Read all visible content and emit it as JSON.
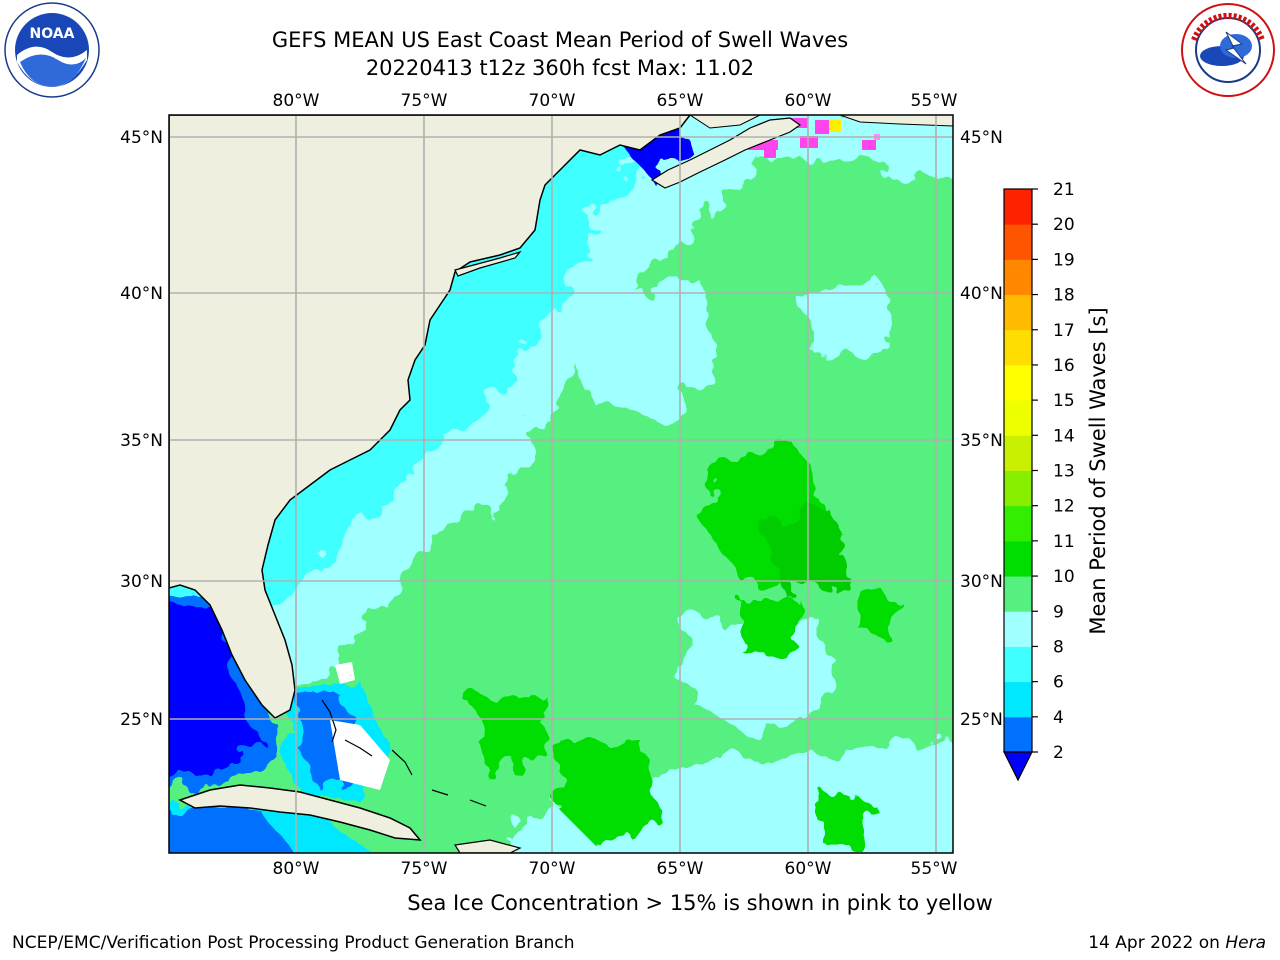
{
  "header": {
    "title": "GEFS MEAN US East Coast Mean Period of Swell Waves",
    "subtitle": "20220413 t12z 360h fcst   Max: 11.02"
  },
  "logos": {
    "left": {
      "name": "NOAA",
      "text": "NOAA"
    },
    "right": {
      "name": "National Weather Service"
    }
  },
  "map": {
    "lon_labels": [
      "80°W",
      "75°W",
      "70°W",
      "65°W",
      "60°W",
      "55°W"
    ],
    "lat_labels": [
      "45°N",
      "40°N",
      "35°N",
      "30°N",
      "25°N"
    ],
    "lon_values": [
      -80,
      -75,
      -70,
      -65,
      -60,
      -55
    ],
    "lat_values": [
      45,
      40,
      35,
      30,
      25
    ],
    "extent": {
      "lon_min": -85,
      "lon_max": -54.5,
      "lat_min": 20.5,
      "lat_max": 46
    },
    "land_color": "#efefdf",
    "grid_color": "#b0b0b0"
  },
  "colorbar": {
    "label": "Mean Period of Swell Waves [s]",
    "ticks": [
      "2",
      "4",
      "6",
      "8",
      "9",
      "10",
      "11",
      "12",
      "13",
      "14",
      "15",
      "16",
      "17",
      "18",
      "19",
      "20",
      "21"
    ],
    "colors": [
      "#0070ff",
      "#00e8ff",
      "#40ffff",
      "#a0ffff",
      "#55f080",
      "#00dd00",
      "#33ee00",
      "#88ee00",
      "#c8f000",
      "#eeff00",
      "#ffff00",
      "#ffdd00",
      "#ffbb00",
      "#ff8800",
      "#ff5500",
      "#ff2200"
    ],
    "under_color": "#0000ff"
  },
  "footer": {
    "ice_note": "Sea Ice Concentration > 15% is shown in pink to yellow",
    "left": "NCEP/EMC/Verification Post Processing Product Generation Branch",
    "date": "14 Apr 2022 on",
    "host": "Hera"
  }
}
